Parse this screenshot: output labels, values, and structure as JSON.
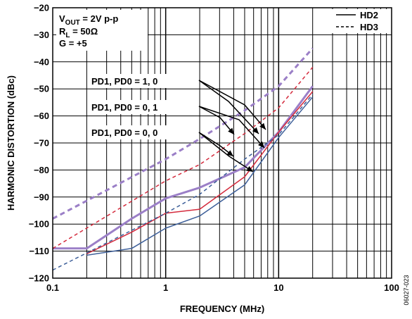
{
  "chart_data": {
    "type": "line",
    "title": "",
    "xlabel": "FREQUENCY (MHz)",
    "ylabel": "HARMONIC DISTORTION (dBc)",
    "xscale": "log",
    "xlim": [
      0.1,
      100
    ],
    "ylim": [
      -120,
      -20
    ],
    "x_ticks": [
      "0.1",
      "1",
      "10",
      "100"
    ],
    "y_ticks": [
      "−20",
      "−30",
      "−40",
      "−50",
      "−60",
      "−70",
      "−80",
      "−90",
      "−100",
      "−110",
      "−120"
    ],
    "y_tick_values": [
      -20,
      -30,
      -40,
      -50,
      -60,
      -70,
      -80,
      -90,
      -100,
      -110,
      -120
    ],
    "grid": true,
    "conditions": [
      {
        "main": "V",
        "sub": "OUT",
        "rest": " = 2V p-p"
      },
      {
        "main": "R",
        "sub": "L",
        "rest": " = 50Ω"
      },
      {
        "main": "G = +5",
        "sub": "",
        "rest": ""
      }
    ],
    "legend": {
      "position": "top-right",
      "entries": [
        {
          "label": "HD2",
          "style": "solid"
        },
        {
          "label": "HD3",
          "style": "dashed"
        }
      ]
    },
    "colors": {
      "pd10": "#9b7fc7",
      "pd01": "#d42a3c",
      "pd00": "#3d5f99"
    },
    "annotations": [
      {
        "label": "PD1, PD0 = 1, 0",
        "color_key": "pd10"
      },
      {
        "label": "PD1, PD0 = 0, 1",
        "color_key": "pd01"
      },
      {
        "label": "PD1, PD0 = 0, 0",
        "color_key": "pd00"
      }
    ],
    "series": [
      {
        "color_key": "pd10",
        "harmonic": "HD2",
        "dash": false,
        "width": 3,
        "x": [
          0.1,
          0.2,
          0.5,
          1,
          2,
          5,
          10,
          20
        ],
        "y": [
          -109,
          -109,
          -98,
          -90.5,
          -86.5,
          -79,
          -66,
          -49
        ]
      },
      {
        "color_key": "pd10",
        "harmonic": "HD3",
        "dash": true,
        "width": 3,
        "x": [
          0.1,
          1,
          2,
          5,
          10,
          20
        ],
        "y": [
          -98,
          -76,
          -68.5,
          -58,
          -49,
          -35
        ]
      },
      {
        "color_key": "pd01",
        "harmonic": "HD2",
        "dash": false,
        "width": 1.5,
        "x": [
          0.2,
          0.5,
          1,
          2,
          5,
          10,
          20
        ],
        "y": [
          -111,
          -103,
          -96,
          -94.5,
          -82.5,
          -66,
          -51
        ]
      },
      {
        "color_key": "pd01",
        "harmonic": "HD3",
        "dash": true,
        "width": 1.5,
        "x": [
          0.1,
          1,
          2,
          5,
          10,
          20
        ],
        "y": [
          -109,
          -84,
          -78,
          -66.5,
          -57,
          -42
        ]
      },
      {
        "color_key": "pd00",
        "harmonic": "HD2",
        "dash": false,
        "width": 1.5,
        "x": [
          0.2,
          0.5,
          1,
          2,
          5,
          10,
          20
        ],
        "y": [
          -111.5,
          -109,
          -101.5,
          -97,
          -85.5,
          -68,
          -53
        ]
      },
      {
        "color_key": "pd00",
        "harmonic": "HD3",
        "dash": true,
        "width": 1.5,
        "x": [
          0.1,
          1,
          2,
          5,
          10,
          20
        ],
        "y": [
          -117,
          -96,
          -89,
          -76,
          -67,
          -52
        ]
      }
    ],
    "figure_id": "06027-023"
  }
}
